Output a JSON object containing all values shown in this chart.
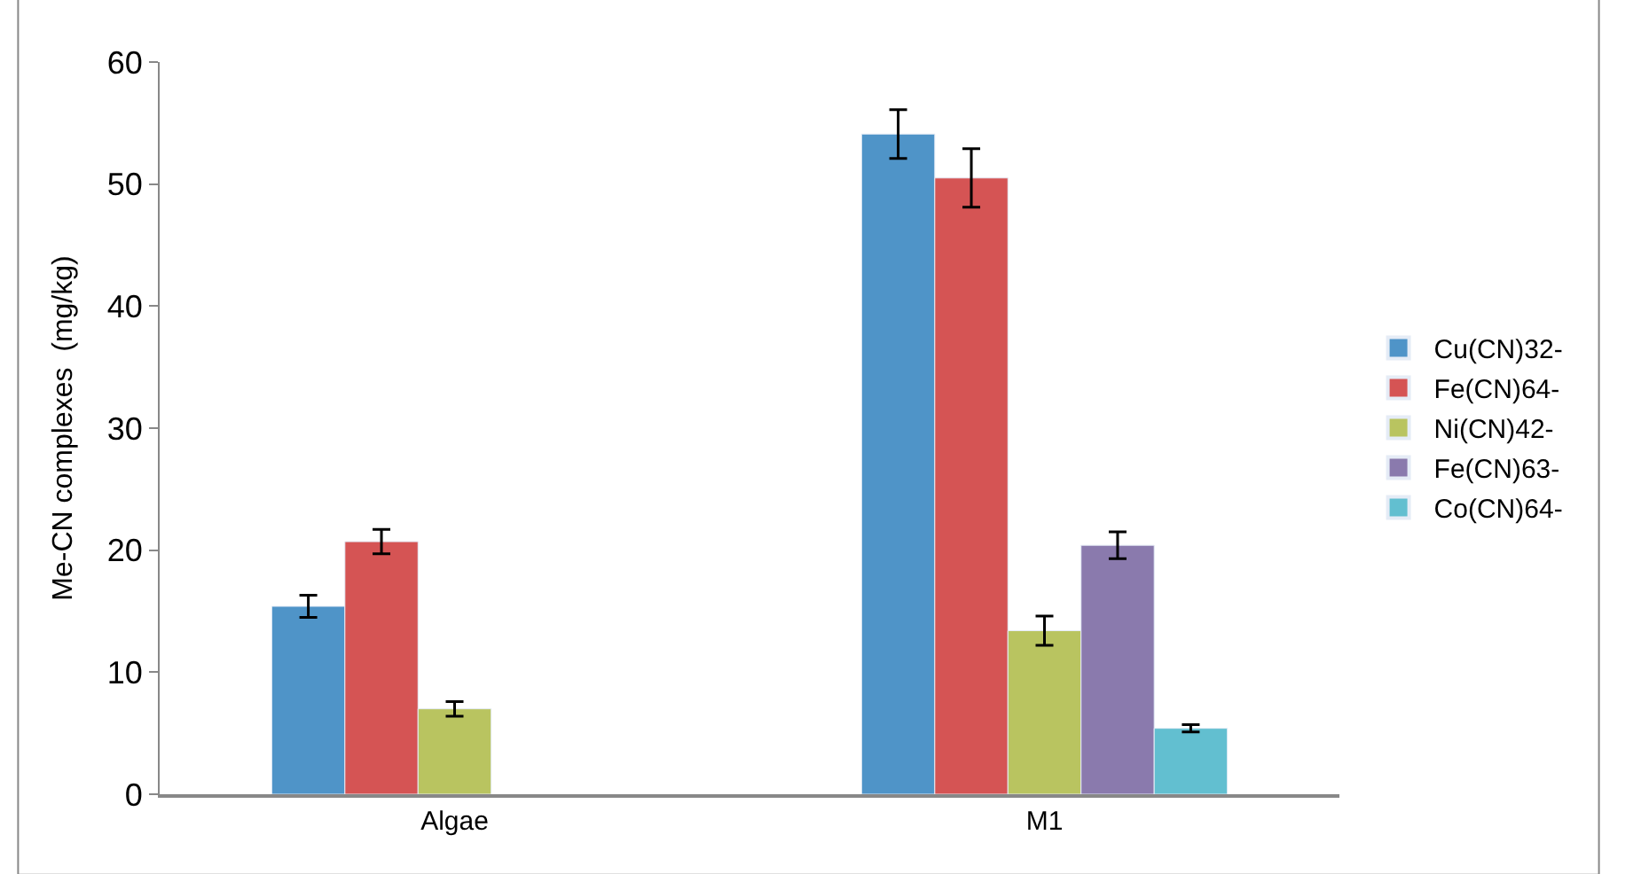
{
  "chart_data": {
    "type": "bar",
    "ylabel": "Me-CN complexes  (mg/kg)",
    "categories": [
      "Algae",
      "M1"
    ],
    "ylim": [
      0,
      60
    ],
    "yticks": [
      0,
      10,
      20,
      30,
      40,
      50,
      60
    ],
    "legend": "right",
    "series": [
      {
        "name": "Cu(CN)32-",
        "color": "#4f94c8",
        "values": [
          15.4,
          54.1
        ],
        "errors": [
          0.9,
          2.0
        ]
      },
      {
        "name": "Fe(CN)64-",
        "color": "#d55454",
        "values": [
          20.7,
          50.5
        ],
        "errors": [
          1.0,
          2.4
        ]
      },
      {
        "name": "Ni(CN)42-",
        "color": "#b9c460",
        "values": [
          7.0,
          13.4
        ],
        "errors": [
          0.6,
          1.2
        ]
      },
      {
        "name": "Fe(CN)63-",
        "color": "#8a7aad",
        "values": [
          null,
          20.4
        ],
        "errors": [
          null,
          1.1
        ]
      },
      {
        "name": "Co(CN)64-",
        "color": "#62bfd0",
        "values": [
          null,
          5.4
        ],
        "errors": [
          null,
          0.3
        ]
      }
    ]
  }
}
